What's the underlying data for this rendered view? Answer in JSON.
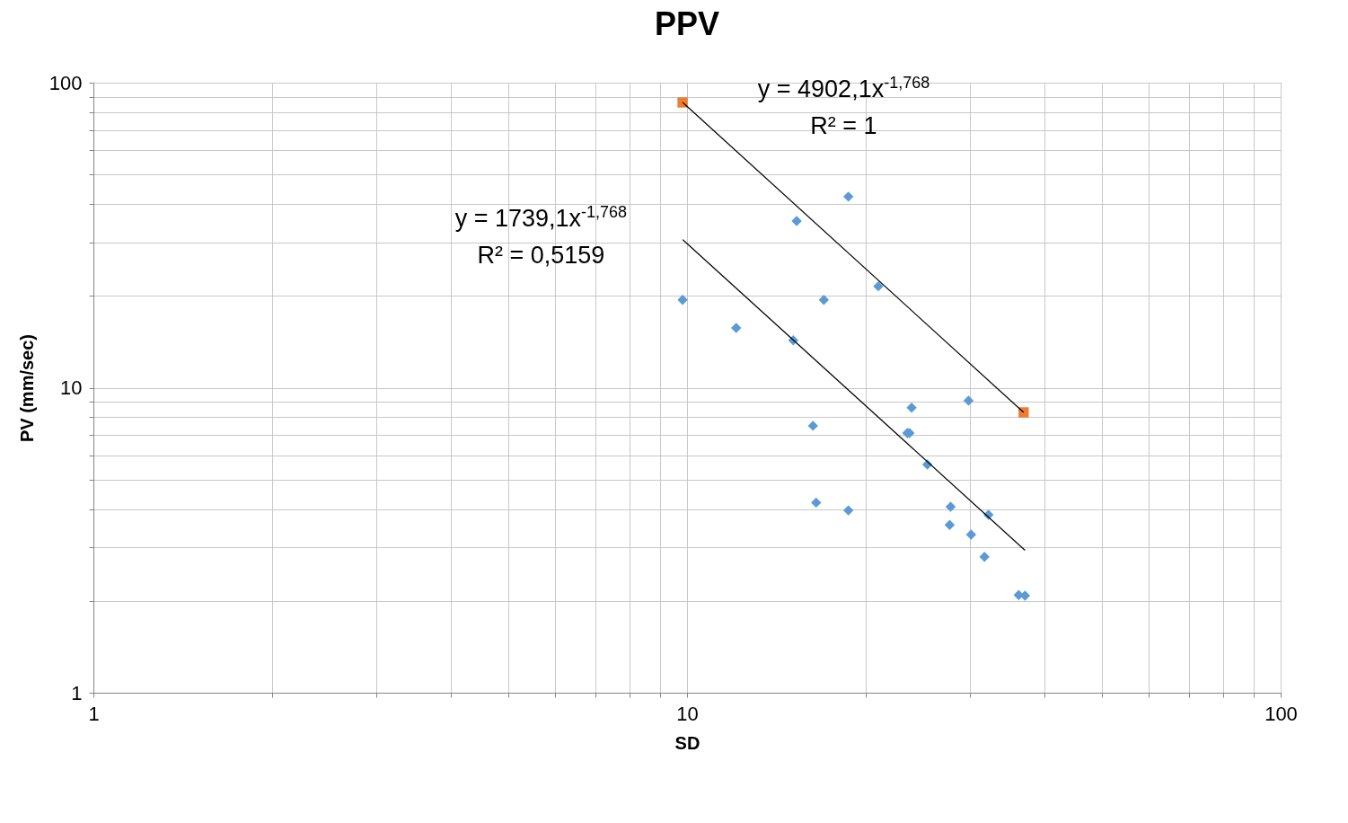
{
  "chart_data": {
    "type": "scatter",
    "title": "PPV",
    "xlabel": "SD",
    "ylabel": "PV (mm/sec)",
    "log": "xy",
    "grid": true,
    "xlim": [
      1,
      100
    ],
    "ylim": [
      1,
      100
    ],
    "xticks": [
      1,
      {
        "value": 2,
        "label": null
      },
      {
        "value": 3,
        "label": null
      },
      {
        "value": 4,
        "label": null
      },
      {
        "value": 5,
        "label": null
      },
      {
        "value": 6,
        "label": null
      },
      {
        "value": 7,
        "label": null
      },
      {
        "value": 8,
        "label": null
      },
      {
        "value": 9,
        "label": null
      },
      10,
      {
        "value": 20,
        "label": null
      },
      {
        "value": 30,
        "label": null
      },
      {
        "value": 40,
        "label": null
      },
      {
        "value": 50,
        "label": null
      },
      {
        "value": 60,
        "label": null
      },
      {
        "value": 70,
        "label": null
      },
      {
        "value": 80,
        "label": null
      },
      {
        "value": 90,
        "label": null
      },
      100
    ],
    "yticks": [
      1,
      {
        "value": 2,
        "label": null
      },
      {
        "value": 3,
        "label": null
      },
      {
        "value": 4,
        "label": null
      },
      {
        "value": 5,
        "label": null
      },
      {
        "value": 6,
        "label": null
      },
      {
        "value": 7,
        "label": null
      },
      {
        "value": 8,
        "label": null
      },
      {
        "value": 9,
        "label": null
      },
      10,
      {
        "value": 20,
        "label": null
      },
      {
        "value": 30,
        "label": null
      },
      {
        "value": 40,
        "label": null
      },
      {
        "value": 50,
        "label": null
      },
      {
        "value": 60,
        "label": null
      },
      {
        "value": 70,
        "label": null
      },
      {
        "value": 80,
        "label": null
      },
      {
        "value": 90,
        "label": null
      },
      100
    ],
    "series": [
      {
        "marker": "diamond",
        "color": "#5b9bd5",
        "x": [
          9.83,
          12.1,
          15.1,
          15.3,
          16.3,
          16.5,
          17.0,
          18.7,
          18.7,
          21.0,
          23.5,
          23.7,
          23.9,
          25.4,
          27.7,
          27.8,
          29.8,
          30.1,
          31.7,
          32.2,
          36.2,
          37.1
        ],
        "values": [
          19.4,
          15.7,
          14.3,
          35.2,
          7.5,
          4.2,
          19.4,
          42.3,
          3.96,
          21.5,
          7.1,
          7.1,
          8.6,
          5.6,
          3.55,
          4.07,
          9.07,
          3.3,
          2.79,
          3.83,
          2.09,
          2.08
        ]
      },
      {
        "marker": "square",
        "color": "#ed7d31",
        "x": [
          9.83,
          36.9
        ],
        "values": [
          86.1,
          8.3
        ]
      },
      {
        "type": "line",
        "marker": "none",
        "line_style": "solid",
        "color": "#000000",
        "x": [
          9.83,
          36.9
        ],
        "values": [
          86.2,
          8.3
        ]
      },
      {
        "type": "line",
        "marker": "none",
        "line_style": "solid",
        "color": "#000000",
        "x": [
          9.83,
          37.1
        ],
        "values": [
          30.6,
          2.93
        ]
      }
    ],
    "annotations": [
      "y = 4902,1x$^{-1,768}$",
      "R² = 1",
      "y = 1739,1x$^{-1,768}$",
      "R² = 0,5159"
    ]
  }
}
